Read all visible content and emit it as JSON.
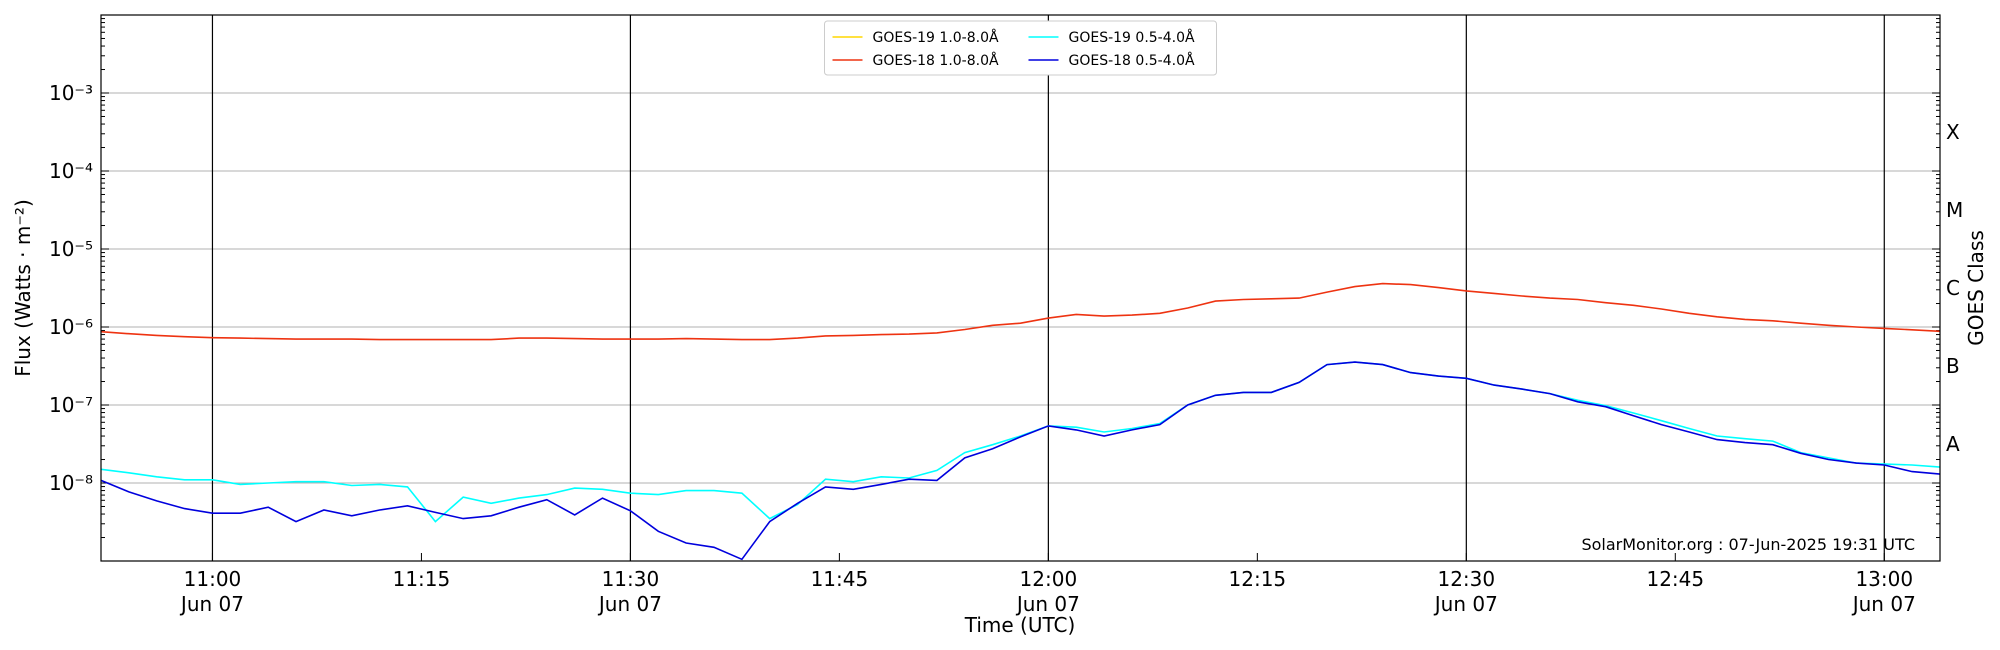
{
  "chart_data": {
    "type": "line",
    "x_label": "Time (UTC)",
    "y_label": "Flux (Watts · m⁻²)",
    "y2_label": "GOES Class",
    "annotation": "SolarMonitor.org : 07-Jun-2025 19:31 UTC",
    "log_y": true,
    "grid": true,
    "legend": "upper center",
    "xlim": [
      "10:52",
      "13:04"
    ],
    "xticks": [
      "11:00",
      "11:15",
      "11:30",
      "11:45",
      "12:00",
      "12:15",
      "12:30",
      "12:45",
      "13:00"
    ],
    "xtick_dates": [
      {
        "value": "11:00",
        "label": "Jun 07"
      },
      {
        "value": "11:30",
        "label": "Jun 07"
      },
      {
        "value": "12:00",
        "label": "Jun 07"
      },
      {
        "value": "12:30",
        "label": "Jun 07"
      },
      {
        "value": "13:00",
        "label": "Jun 07"
      }
    ],
    "ylim": [
      1e-09,
      0.01
    ],
    "yticks": [
      {
        "value": 1e-08,
        "label": "10⁻⁸"
      },
      {
        "value": 1e-07,
        "label": "10⁻⁷"
      },
      {
        "value": 1e-06,
        "label": "10⁻⁶"
      },
      {
        "value": 1e-05,
        "label": "10⁻⁵"
      },
      {
        "value": 0.0001,
        "label": "10⁻⁴"
      },
      {
        "value": 0.001,
        "label": "10⁻³"
      }
    ],
    "class_labels": [
      {
        "value": 1e-08,
        "label": "A"
      },
      {
        "value": 1e-07,
        "label": "B"
      },
      {
        "value": 1e-06,
        "label": "C"
      },
      {
        "value": 1e-05,
        "label": "M"
      },
      {
        "value": 0.0001,
        "label": "X"
      }
    ],
    "x": [
      "10:52",
      "10:54",
      "10:56",
      "10:58",
      "11:00",
      "11:02",
      "11:04",
      "11:06",
      "11:08",
      "11:10",
      "11:12",
      "11:14",
      "11:16",
      "11:18",
      "11:20",
      "11:22",
      "11:24",
      "11:26",
      "11:28",
      "11:30",
      "11:32",
      "11:34",
      "11:36",
      "11:38",
      "11:40",
      "11:42",
      "11:44",
      "11:46",
      "11:48",
      "11:50",
      "11:52",
      "11:54",
      "11:56",
      "11:58",
      "12:00",
      "12:02",
      "12:04",
      "12:06",
      "12:08",
      "12:10",
      "12:12",
      "12:14",
      "12:16",
      "12:18",
      "12:20",
      "12:22",
      "12:24",
      "12:26",
      "12:28",
      "12:30",
      "12:32",
      "12:34",
      "12:36",
      "12:38",
      "12:40",
      "12:42",
      "12:44",
      "12:46",
      "12:48",
      "12:50",
      "12:52",
      "12:54",
      "12:56",
      "12:58",
      "13:00",
      "13:02",
      "13:04"
    ],
    "series": [
      {
        "name": "GOES-19 1.0-8.0Å",
        "color": "#ffd700",
        "values": [
          null,
          null,
          null,
          null,
          null,
          null,
          null,
          null,
          null,
          null,
          null,
          null,
          null,
          null,
          null,
          null,
          null,
          null,
          null,
          null,
          null,
          null,
          null,
          null,
          null,
          null,
          null,
          null,
          null,
          null,
          null,
          null,
          null,
          null,
          null,
          null,
          null,
          null,
          null,
          null,
          null,
          null,
          null,
          null,
          null,
          null,
          null,
          null,
          null,
          null,
          null,
          null,
          null,
          null,
          null,
          null,
          null,
          null,
          null,
          null,
          null,
          null,
          null,
          null,
          null,
          null,
          null
        ]
      },
      {
        "name": "GOES-18 1.0-8.0Å",
        "color": "#ee3311",
        "values": [
          8.7e-07,
          8.2e-07,
          7.8e-07,
          7.5e-07,
          7.3e-07,
          7.2e-07,
          7.1e-07,
          7e-07,
          7e-07,
          7e-07,
          6.9e-07,
          6.9e-07,
          6.9e-07,
          6.9e-07,
          6.9e-07,
          7.2e-07,
          7.2e-07,
          7.1e-07,
          7e-07,
          7e-07,
          7e-07,
          7.1e-07,
          7e-07,
          6.9e-07,
          6.9e-07,
          7.2e-07,
          7.7e-07,
          7.8e-07,
          8e-07,
          8.1e-07,
          8.4e-07,
          9.3e-07,
          1.05e-06,
          1.12e-06,
          1.3e-06,
          1.45e-06,
          1.38e-06,
          1.42e-06,
          1.5e-06,
          1.75e-06,
          2.15e-06,
          2.25e-06,
          2.3e-06,
          2.35e-06,
          2.8e-06,
          3.3e-06,
          3.6e-06,
          3.5e-06,
          3.2e-06,
          2.9e-06,
          2.7e-06,
          2.5e-06,
          2.35e-06,
          2.25e-06,
          2.05e-06,
          1.9e-06,
          1.7e-06,
          1.5e-06,
          1.35e-06,
          1.25e-06,
          1.2e-06,
          1.12e-06,
          1.05e-06,
          1e-06,
          9.6e-07,
          9.2e-07,
          8.8e-07
        ]
      },
      {
        "name": "GOES-19 0.5-4.0Å",
        "color": "#00ffff",
        "values": [
          1.5e-08,
          1.35e-08,
          1.2e-08,
          1.1e-08,
          1.1e-08,
          9.6e-09,
          1e-08,
          1.04e-08,
          1.04e-08,
          9.3e-09,
          9.6e-09,
          8.9e-09,
          3.2e-09,
          6.6e-09,
          5.5e-09,
          6.4e-09,
          7.1e-09,
          8.6e-09,
          8.3e-09,
          7.4e-09,
          7.1e-09,
          8e-09,
          8e-09,
          7.4e-09,
          3.5e-09,
          5.3e-09,
          1.12e-08,
          1.04e-08,
          1.2e-08,
          1.16e-08,
          1.45e-08,
          2.45e-08,
          3.1e-08,
          4e-08,
          5.4e-08,
          5.2e-08,
          4.5e-08,
          5e-08,
          5.8e-08,
          1e-07,
          1.33e-07,
          1.45e-07,
          1.45e-07,
          1.95e-07,
          3.3e-07,
          3.55e-07,
          3.3e-07,
          2.6e-07,
          2.35e-07,
          2.2e-07,
          1.8e-07,
          1.6e-07,
          1.4e-07,
          1.15e-07,
          9.8e-08,
          7.9e-08,
          6.3e-08,
          5e-08,
          4e-08,
          3.7e-08,
          3.45e-08,
          2.45e-08,
          2.1e-08,
          1.8e-08,
          1.75e-08,
          1.7e-08,
          1.6e-08
        ]
      },
      {
        "name": "GOES-18 0.5-4.0Å",
        "color": "#0000dd",
        "values": [
          1.08e-08,
          7.7e-09,
          5.9e-09,
          4.7e-09,
          4.1e-09,
          4.1e-09,
          4.9e-09,
          3.2e-09,
          4.5e-09,
          3.8e-09,
          4.5e-09,
          5.1e-09,
          4.2e-09,
          3.5e-09,
          3.8e-09,
          4.9e-09,
          6.1e-09,
          3.9e-09,
          6.4e-09,
          4.4e-09,
          2.4e-09,
          1.7e-09,
          1.5e-09,
          1.05e-09,
          3.2e-09,
          5.5e-09,
          8.9e-09,
          8.3e-09,
          9.6e-09,
          1.12e-08,
          1.08e-08,
          2.1e-08,
          2.75e-08,
          3.9e-08,
          5.4e-08,
          4.8e-08,
          4e-08,
          4.8e-08,
          5.6e-08,
          1e-07,
          1.33e-07,
          1.45e-07,
          1.45e-07,
          1.95e-07,
          3.3e-07,
          3.55e-07,
          3.3e-07,
          2.6e-07,
          2.35e-07,
          2.2e-07,
          1.8e-07,
          1.6e-07,
          1.4e-07,
          1.1e-07,
          9.5e-08,
          7.3e-08,
          5.6e-08,
          4.5e-08,
          3.6e-08,
          3.3e-08,
          3.1e-08,
          2.4e-08,
          2e-08,
          1.8e-08,
          1.7e-08,
          1.4e-08,
          1.3e-08
        ]
      }
    ]
  }
}
